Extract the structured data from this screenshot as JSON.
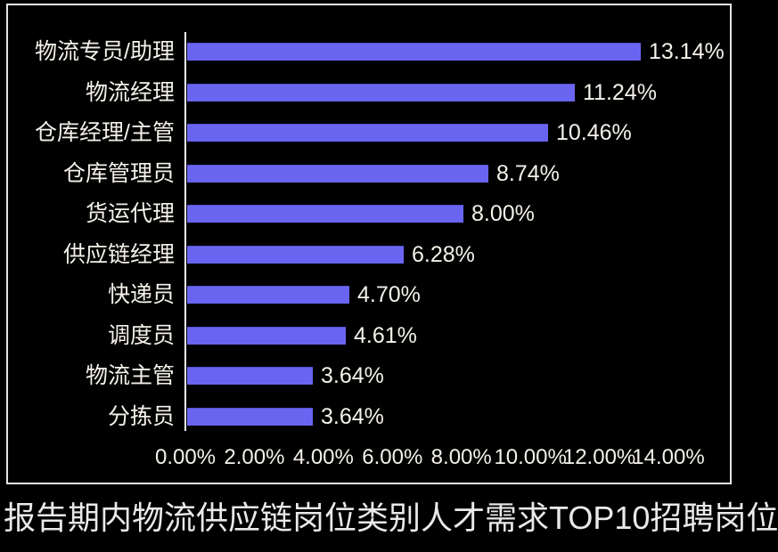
{
  "chart_data": {
    "type": "bar",
    "orientation": "horizontal",
    "title": "报告期内物流供应链岗位类别人才需求TOP10招聘岗位",
    "categories": [
      "物流专员/助理",
      "物流经理",
      "仓库经理/主管",
      "仓库管理员",
      "货运代理",
      "供应链经理",
      "快递员",
      "调度员",
      "物流主管",
      "分拣员"
    ],
    "values": [
      13.14,
      11.24,
      10.46,
      8.74,
      8.0,
      6.28,
      4.7,
      4.61,
      3.64,
      3.64
    ],
    "value_labels": [
      "13.14%",
      "11.24%",
      "10.46%",
      "8.74%",
      "8.00%",
      "6.28%",
      "4.70%",
      "4.61%",
      "3.64%",
      "3.64%"
    ],
    "x_ticks": [
      "0.00%",
      "2.00%",
      "4.00%",
      "6.00%",
      "8.00%",
      "10.00%",
      "12.00%",
      "14.00%"
    ],
    "xlim": [
      0,
      14
    ],
    "grid": false,
    "legend": false,
    "xlabel": "",
    "ylabel": ""
  },
  "colors": {
    "background": "#000000",
    "bar": "#6a65f1",
    "text": "#f4f1ea",
    "frame_border": "#e4e4e4",
    "axis_line": "#fbfbfb",
    "title_text": "#e9e9e7"
  }
}
